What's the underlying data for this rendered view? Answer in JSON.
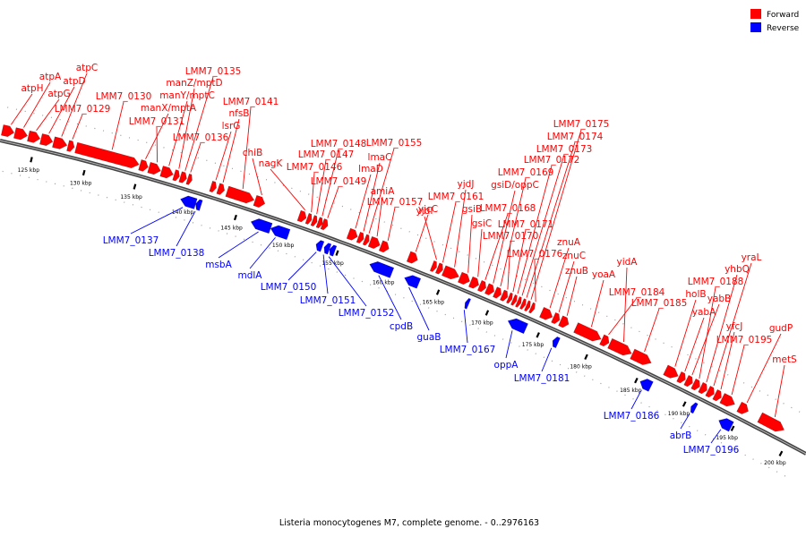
{
  "legend": {
    "forward_label": "Forward",
    "reverse_label": "Reverse",
    "forward_color": "#ff0000",
    "reverse_color": "#0000ff"
  },
  "caption": "Listeria monocytogenes M7, complete genome. - 0..2976163",
  "axis": {
    "unit": "kbp",
    "tick_labels": [
      "125 kbp",
      "130 kbp",
      "135 kbp",
      "140 kbp",
      "145 kbp",
      "150 kbp",
      "155 kbp",
      "160 kbp",
      "165 kbp",
      "170 kbp",
      "175 kbp",
      "180 kbp",
      "185 kbp",
      "190 kbp",
      "195 kbp",
      "200 kbp"
    ]
  },
  "genes": {
    "forward": [
      "atpH",
      "atpA",
      "atpG",
      "atpD",
      "atpC",
      "LMM7_0129",
      "LMM7_0130",
      "manX/mptA",
      "LMM7_0131",
      "manY/mptC",
      "manZ/mptD",
      "LMM7_0135",
      "LMM7_0136",
      "lsrG",
      "nfsB",
      "LMM7_0141",
      "chiB",
      "nagK",
      "LMM7_0146",
      "LMM7_0147",
      "LMM7_0148",
      "LMM7_0149",
      "lmaD",
      "lmaC",
      "LMM7_0155",
      "amiA",
      "LMM7_0157",
      "yjcC",
      "yjdI",
      "LMM7_0161",
      "yjdJ",
      "gsiB",
      "gsiC",
      "LMM7_0168",
      "gsiD/oppC",
      "LMM7_0169",
      "LMM7_0170",
      "LMM7_0171",
      "LMM7_0172",
      "LMM7_0173",
      "LMM7_0174",
      "LMM7_0175",
      "LMM7_0176",
      "znuA",
      "znuC",
      "znuB",
      "yoaA",
      "LMM7_0184",
      "yidA",
      "LMM7_0185",
      "holB",
      "yabA",
      "yabB",
      "LMM7_0188",
      "yhbQ",
      "yraL",
      "yfcJ",
      "LMM7_0195",
      "gudP",
      "metS"
    ],
    "reverse": [
      "LMM7_0137",
      "LMM7_0138",
      "msbA",
      "mdlA",
      "LMM7_0150",
      "LMM7_0151",
      "LMM7_0152",
      "cpdB",
      "guaB",
      "LMM7_0167",
      "oppA",
      "LMM7_0181",
      "LMM7_0186",
      "abrB",
      "LMM7_0196"
    ]
  }
}
